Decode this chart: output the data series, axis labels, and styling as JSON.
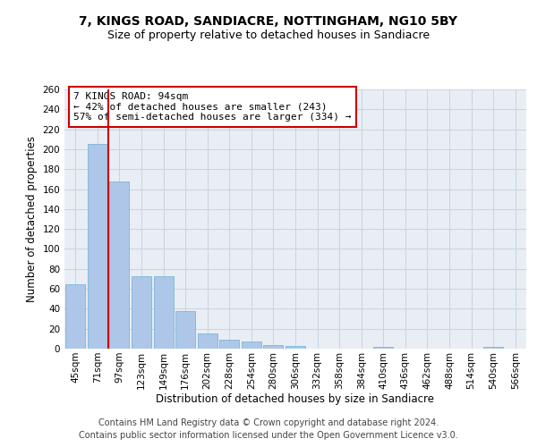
{
  "title_line1": "7, KINGS ROAD, SANDIACRE, NOTTINGHAM, NG10 5BY",
  "title_line2": "Size of property relative to detached houses in Sandiacre",
  "xlabel": "Distribution of detached houses by size in Sandiacre",
  "ylabel": "Number of detached properties",
  "categories": [
    "45sqm",
    "71sqm",
    "97sqm",
    "123sqm",
    "149sqm",
    "176sqm",
    "202sqm",
    "228sqm",
    "254sqm",
    "280sqm",
    "306sqm",
    "332sqm",
    "358sqm",
    "384sqm",
    "410sqm",
    "436sqm",
    "462sqm",
    "488sqm",
    "514sqm",
    "540sqm",
    "566sqm"
  ],
  "values": [
    65,
    205,
    168,
    73,
    73,
    38,
    15,
    9,
    7,
    4,
    3,
    0,
    0,
    0,
    2,
    0,
    0,
    0,
    0,
    2,
    0
  ],
  "bar_color": "#aec6e8",
  "bar_edge_color": "#6aaed6",
  "vline_index": 1,
  "vline_color": "#cc0000",
  "annotation_text": "7 KINGS ROAD: 94sqm\n← 42% of detached houses are smaller (243)\n57% of semi-detached houses are larger (334) →",
  "annotation_box_color": "white",
  "annotation_box_edge_color": "#cc0000",
  "ylim": [
    0,
    260
  ],
  "yticks": [
    0,
    20,
    40,
    60,
    80,
    100,
    120,
    140,
    160,
    180,
    200,
    220,
    240,
    260
  ],
  "grid_color": "#c8d4e0",
  "bg_color": "#e8eef4",
  "footer_line1": "Contains HM Land Registry data © Crown copyright and database right 2024.",
  "footer_line2": "Contains public sector information licensed under the Open Government Licence v3.0.",
  "title_fontsize": 10,
  "subtitle_fontsize": 9,
  "axis_label_fontsize": 8.5,
  "tick_fontsize": 7.5,
  "annotation_fontsize": 8,
  "footer_fontsize": 7
}
